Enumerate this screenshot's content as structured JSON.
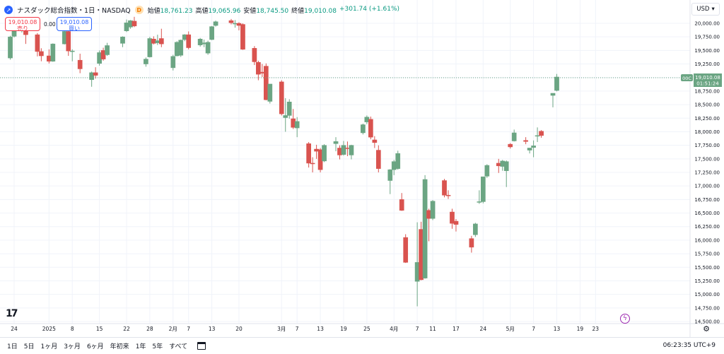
{
  "header": {
    "symbol_icon": "chart-icon",
    "symbol_name": "ナスダック総合指数・1日・NASDAQ",
    "delay_badge": "D",
    "open_label": "始値",
    "open_value": "18,761.23",
    "high_label": "高値",
    "high_value": "19,065.96",
    "low_label": "安値",
    "low_value": "18,745.50",
    "close_label": "終値",
    "close_value": "19,010.08",
    "change": "+301.74 (+1.61%)"
  },
  "trade": {
    "sell_price": "19,010.08",
    "sell_label": "売り",
    "spread": "0.00",
    "buy_price": "19,010.08",
    "buy_label": "買い"
  },
  "currency": {
    "label": "USD",
    "icon": "chevron-down-icon"
  },
  "price_tag": {
    "source": "00C",
    "price": "19,010.08",
    "countdown": "01:51:24"
  },
  "colors": {
    "up": "#6ba583",
    "down": "#d9534f",
    "up_text": "#089981",
    "down_text": "#f23645",
    "accent": "#2962ff"
  },
  "ranges": [
    "1日",
    "5日",
    "1ヶ月",
    "3ヶ月",
    "6ヶ月",
    "年初来",
    "1年",
    "5年",
    "すべて"
  ],
  "clock": "06:23:35 UTC+9",
  "chart_data": {
    "type": "candlestick",
    "y_axis": {
      "ticks": [
        20000,
        19750,
        19500,
        19250,
        19000,
        18750,
        18500,
        18250,
        18000,
        17750,
        17500,
        17250,
        17000,
        16750,
        16500,
        16250,
        16000,
        15750,
        15500,
        15250,
        15000,
        14750,
        14500
      ],
      "tick_labels": [
        "20,000.00",
        "19,750.00",
        "19,500.00",
        "19,250.00",
        "19,000.00",
        "18,750.00",
        "18,500.00",
        "18,250.00",
        "18,000.00",
        "17,750.00",
        "17,500.00",
        "17,250.00",
        "17,000.00",
        "16,750.00",
        "16,500.00",
        "16,250.00",
        "16,000.00",
        "15,750.00",
        "15,500.00",
        "15,250.00",
        "15,000.00",
        "14,750.00",
        "14,500.00"
      ],
      "range": [
        14500,
        20150
      ]
    },
    "x_axis": {
      "labels": [
        "24",
        "2025",
        "8",
        "15",
        "22",
        "28",
        "2月",
        "7",
        "13",
        "20",
        "3月",
        "7",
        "13",
        "19",
        "25",
        "4月",
        "7",
        "11",
        "17",
        "24",
        "5月",
        "7",
        "13",
        "19",
        "23"
      ],
      "label_dates": [
        "2024-12-24",
        "2025-01-02",
        "2025-01-08",
        "2025-01-15",
        "2025-01-22",
        "2025-01-28",
        "2025-02-03",
        "2025-02-07",
        "2025-02-13",
        "2025-02-20",
        "2025-03-03",
        "2025-03-07",
        "2025-03-13",
        "2025-03-19",
        "2025-03-25",
        "2025-04-01",
        "2025-04-07",
        "2025-04-11",
        "2025-04-17",
        "2025-04-24",
        "2025-05-01",
        "2025-05-07",
        "2025-05-13",
        "2025-05-19",
        "2025-05-23"
      ]
    },
    "candles": [
      {
        "date": "2024-12-23",
        "o": 19360,
        "h": 19770,
        "l": 19330,
        "c": 19750
      },
      {
        "date": "2024-12-24",
        "o": 19760,
        "h": 19880,
        "l": 19740,
        "c": 19870
      },
      {
        "date": "2024-12-26",
        "o": 19870,
        "h": 19940,
        "l": 19830,
        "c": 19890
      },
      {
        "date": "2024-12-27",
        "o": 19890,
        "h": 19900,
        "l": 19620,
        "c": 19790
      },
      {
        "date": "2024-12-30",
        "o": 19790,
        "h": 19820,
        "l": 19390,
        "c": 19480
      },
      {
        "date": "2024-12-31",
        "o": 19480,
        "h": 19540,
        "l": 19300,
        "c": 19400
      },
      {
        "date": "2025-01-02",
        "o": 19400,
        "h": 19520,
        "l": 19260,
        "c": 19300
      },
      {
        "date": "2025-01-03",
        "o": 19300,
        "h": 19630,
        "l": 19290,
        "c": 19620
      },
      {
        "date": "2025-01-06",
        "o": 19620,
        "h": 19940,
        "l": 19610,
        "c": 19850
      },
      {
        "date": "2025-01-07",
        "o": 19850,
        "h": 19870,
        "l": 19400,
        "c": 19490
      },
      {
        "date": "2025-01-08",
        "o": 19480,
        "h": 19520,
        "l": 19300,
        "c": 19490
      },
      {
        "date": "2025-01-10",
        "o": 19320,
        "h": 19440,
        "l": 19080,
        "c": 19160
      },
      {
        "date": "2025-01-13",
        "o": 18960,
        "h": 19110,
        "l": 18830,
        "c": 19090
      },
      {
        "date": "2025-01-14",
        "o": 19090,
        "h": 19190,
        "l": 18980,
        "c": 19040
      },
      {
        "date": "2025-01-15",
        "o": 19260,
        "h": 19500,
        "l": 19220,
        "c": 19460
      },
      {
        "date": "2025-01-16",
        "o": 19500,
        "h": 19550,
        "l": 19310,
        "c": 19340
      },
      {
        "date": "2025-01-17",
        "o": 19420,
        "h": 19640,
        "l": 19400,
        "c": 19590
      },
      {
        "date": "2025-01-21",
        "o": 19630,
        "h": 19760,
        "l": 19560,
        "c": 19750
      },
      {
        "date": "2025-01-22",
        "o": 19860,
        "h": 20070,
        "l": 19840,
        "c": 20010
      },
      {
        "date": "2025-01-23",
        "o": 19930,
        "h": 20060,
        "l": 19900,
        "c": 20050
      },
      {
        "date": "2025-01-24",
        "o": 20040,
        "h": 20120,
        "l": 19930,
        "c": 19950
      },
      {
        "date": "2025-01-27",
        "o": 19250,
        "h": 19370,
        "l": 19200,
        "c": 19340
      },
      {
        "date": "2025-01-28",
        "o": 19380,
        "h": 19750,
        "l": 19370,
        "c": 19720
      },
      {
        "date": "2025-01-29",
        "o": 19710,
        "h": 19760,
        "l": 19610,
        "c": 19630
      },
      {
        "date": "2025-01-30",
        "o": 19640,
        "h": 19790,
        "l": 19600,
        "c": 19680
      },
      {
        "date": "2025-01-31",
        "o": 19720,
        "h": 19900,
        "l": 19560,
        "c": 19620
      },
      {
        "date": "2025-02-03",
        "o": 19180,
        "h": 19420,
        "l": 19130,
        "c": 19390
      },
      {
        "date": "2025-02-04",
        "o": 19400,
        "h": 19670,
        "l": 19390,
        "c": 19650
      },
      {
        "date": "2025-02-05",
        "o": 19410,
        "h": 19700,
        "l": 19380,
        "c": 19690
      },
      {
        "date": "2025-02-06",
        "o": 19700,
        "h": 19800,
        "l": 19670,
        "c": 19790
      },
      {
        "date": "2025-02-07",
        "o": 19790,
        "h": 19850,
        "l": 19520,
        "c": 19550
      },
      {
        "date": "2025-02-10",
        "o": 19600,
        "h": 19730,
        "l": 19570,
        "c": 19710
      },
      {
        "date": "2025-02-11",
        "o": 19620,
        "h": 19700,
        "l": 19560,
        "c": 19640
      },
      {
        "date": "2025-02-12",
        "o": 19450,
        "h": 19680,
        "l": 19420,
        "c": 19650
      },
      {
        "date": "2025-02-13",
        "o": 19700,
        "h": 19950,
        "l": 19690,
        "c": 19940
      },
      {
        "date": "2025-02-14",
        "o": 19960,
        "h": 20050,
        "l": 19940,
        "c": 20030
      },
      {
        "date": "2025-02-18",
        "o": 20050,
        "h": 20080,
        "l": 19980,
        "c": 20010
      },
      {
        "date": "2025-02-19",
        "o": 20000,
        "h": 20060,
        "l": 19920,
        "c": 20000
      },
      {
        "date": "2025-02-20",
        "o": 20000,
        "h": 20020,
        "l": 19870,
        "c": 19960
      },
      {
        "date": "2025-02-21",
        "o": 19980,
        "h": 20000,
        "l": 19510,
        "c": 19520
      },
      {
        "date": "2025-02-24",
        "o": 19540,
        "h": 19580,
        "l": 19230,
        "c": 19290
      },
      {
        "date": "2025-02-25",
        "o": 19280,
        "h": 19310,
        "l": 18950,
        "c": 19060
      },
      {
        "date": "2025-02-26",
        "o": 19100,
        "h": 19250,
        "l": 19010,
        "c": 19080
      },
      {
        "date": "2025-02-27",
        "o": 19210,
        "h": 19260,
        "l": 18580,
        "c": 18590
      },
      {
        "date": "2025-02-28",
        "o": 18560,
        "h": 18880,
        "l": 18520,
        "c": 18880
      },
      {
        "date": "2025-03-03",
        "o": 18920,
        "h": 18950,
        "l": 18300,
        "c": 18330
      },
      {
        "date": "2025-03-04",
        "o": 18260,
        "h": 18620,
        "l": 18000,
        "c": 18300
      },
      {
        "date": "2025-03-05",
        "o": 18300,
        "h": 18600,
        "l": 18240,
        "c": 18550
      },
      {
        "date": "2025-03-06",
        "o": 18240,
        "h": 18420,
        "l": 18050,
        "c": 18080
      },
      {
        "date": "2025-03-07",
        "o": 18070,
        "h": 18270,
        "l": 17900,
        "c": 18190
      },
      {
        "date": "2025-03-10",
        "o": 17780,
        "h": 17810,
        "l": 17340,
        "c": 17420
      },
      {
        "date": "2025-03-11",
        "o": 17420,
        "h": 17530,
        "l": 17250,
        "c": 17410
      },
      {
        "date": "2025-03-12",
        "o": 17680,
        "h": 17760,
        "l": 17500,
        "c": 17640
      },
      {
        "date": "2025-03-13",
        "o": 17670,
        "h": 17700,
        "l": 17250,
        "c": 17300
      },
      {
        "date": "2025-03-14",
        "o": 17460,
        "h": 17770,
        "l": 17440,
        "c": 17750
      },
      {
        "date": "2025-03-17",
        "o": 17780,
        "h": 17900,
        "l": 17640,
        "c": 17820
      },
      {
        "date": "2025-03-18",
        "o": 17700,
        "h": 17750,
        "l": 17490,
        "c": 17570
      },
      {
        "date": "2025-03-19",
        "o": 17580,
        "h": 17830,
        "l": 17560,
        "c": 17750
      },
      {
        "date": "2025-03-20",
        "o": 17700,
        "h": 17820,
        "l": 17550,
        "c": 17690
      },
      {
        "date": "2025-03-21",
        "o": 17570,
        "h": 17760,
        "l": 17490,
        "c": 17750
      },
      {
        "date": "2025-03-24",
        "o": 17980,
        "h": 18150,
        "l": 17950,
        "c": 18130
      },
      {
        "date": "2025-03-25",
        "o": 18180,
        "h": 18300,
        "l": 18140,
        "c": 18270
      },
      {
        "date": "2025-03-26",
        "o": 18230,
        "h": 18280,
        "l": 17860,
        "c": 17900
      },
      {
        "date": "2025-03-27",
        "o": 17850,
        "h": 17920,
        "l": 17700,
        "c": 17800
      },
      {
        "date": "2025-03-28",
        "o": 17660,
        "h": 17750,
        "l": 17250,
        "c": 17320
      },
      {
        "date": "2025-03-31",
        "o": 17100,
        "h": 17310,
        "l": 16850,
        "c": 17300
      },
      {
        "date": "2025-04-01",
        "o": 17300,
        "h": 17480,
        "l": 17200,
        "c": 17450
      },
      {
        "date": "2025-04-02",
        "o": 17320,
        "h": 17650,
        "l": 17300,
        "c": 17600
      },
      {
        "date": "2025-04-03",
        "o": 16750,
        "h": 16870,
        "l": 16540,
        "c": 16550
      },
      {
        "date": "2025-04-04",
        "o": 16050,
        "h": 16110,
        "l": 15580,
        "c": 15590
      },
      {
        "date": "2025-04-07",
        "o": 15240,
        "h": 16330,
        "l": 14780,
        "c": 15590
      },
      {
        "date": "2025-04-08",
        "o": 16200,
        "h": 16340,
        "l": 15260,
        "c": 15270
      },
      {
        "date": "2025-04-09",
        "o": 15300,
        "h": 17200,
        "l": 15290,
        "c": 17120
      },
      {
        "date": "2025-04-10",
        "o": 16550,
        "h": 16580,
        "l": 15980,
        "c": 16400
      },
      {
        "date": "2025-04-11",
        "o": 16400,
        "h": 16740,
        "l": 16370,
        "c": 16720
      },
      {
        "date": "2025-04-14",
        "o": 17100,
        "h": 17130,
        "l": 16790,
        "c": 16830
      },
      {
        "date": "2025-04-15",
        "o": 16830,
        "h": 16920,
        "l": 16760,
        "c": 16820
      },
      {
        "date": "2025-04-16",
        "o": 16520,
        "h": 16580,
        "l": 16210,
        "c": 16310
      },
      {
        "date": "2025-04-17",
        "o": 16350,
        "h": 16390,
        "l": 16160,
        "c": 16290
      },
      {
        "date": "2025-04-21",
        "o": 16030,
        "h": 16080,
        "l": 15770,
        "c": 15870
      },
      {
        "date": "2025-04-22",
        "o": 16100,
        "h": 16320,
        "l": 16060,
        "c": 16300
      },
      {
        "date": "2025-04-23",
        "o": 16710,
        "h": 16920,
        "l": 16670,
        "c": 16710
      },
      {
        "date": "2025-04-24",
        "o": 16710,
        "h": 17170,
        "l": 16680,
        "c": 17170
      },
      {
        "date": "2025-04-25",
        "o": 17180,
        "h": 17400,
        "l": 17150,
        "c": 17380
      },
      {
        "date": "2025-04-28",
        "o": 17420,
        "h": 17500,
        "l": 17240,
        "c": 17370
      },
      {
        "date": "2025-04-29",
        "o": 17360,
        "h": 17480,
        "l": 17280,
        "c": 17460
      },
      {
        "date": "2025-04-30",
        "o": 17280,
        "h": 17470,
        "l": 16980,
        "c": 17450
      },
      {
        "date": "2025-05-01",
        "o": 17770,
        "h": 17790,
        "l": 17690,
        "c": 17720
      },
      {
        "date": "2025-05-02",
        "o": 17830,
        "h": 18040,
        "l": 17820,
        "c": 17980
      },
      {
        "date": "2025-05-05",
        "o": 17840,
        "h": 17900,
        "l": 17770,
        "c": 17820
      },
      {
        "date": "2025-05-06",
        "o": 17660,
        "h": 17700,
        "l": 17600,
        "c": 17700
      },
      {
        "date": "2025-05-07",
        "o": 17710,
        "h": 17840,
        "l": 17530,
        "c": 17740
      },
      {
        "date": "2025-05-08",
        "o": 17920,
        "h": 18080,
        "l": 17810,
        "c": 17930
      },
      {
        "date": "2025-05-09",
        "o": 18010,
        "h": 18030,
        "l": 17890,
        "c": 17930
      },
      {
        "date": "2025-05-12",
        "o": 18670,
        "h": 18710,
        "l": 18450,
        "c": 18710
      },
      {
        "date": "2025-05-13",
        "o": 18761.23,
        "h": 19065.96,
        "l": 18745.5,
        "c": 19010.08
      }
    ]
  }
}
